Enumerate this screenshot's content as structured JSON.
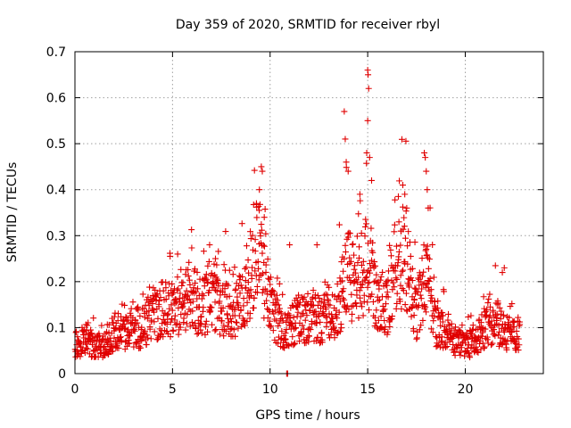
{
  "chart_data": {
    "type": "scatter",
    "title": "Day 359 of 2020, SRMTID for receiver rbyl",
    "xlabel": "GPS time / hours",
    "ylabel": "SRMTID / TECUs",
    "xlim": [
      0,
      24
    ],
    "ylim": [
      0,
      0.7
    ],
    "x_ticks": [
      0,
      5,
      10,
      15,
      20
    ],
    "y_ticks": [
      0,
      0.1,
      0.2,
      0.3,
      0.4,
      0.5,
      0.6,
      0.7
    ],
    "x_tick_labels": [
      "0",
      "5",
      "10",
      "15",
      "20"
    ],
    "y_tick_labels": [
      "0",
      "0.1",
      "0.2",
      "0.3",
      "0.4",
      "0.5",
      "0.6",
      "0.7"
    ],
    "grid": true,
    "marker": "+",
    "color": "#e00000",
    "series": [
      {
        "name": "SRMTID",
        "profile": [
          [
            0.0,
            0.05
          ],
          [
            0.5,
            0.08
          ],
          [
            1.0,
            0.06
          ],
          [
            1.5,
            0.06
          ],
          [
            2.0,
            0.09
          ],
          [
            2.5,
            0.09
          ],
          [
            3.0,
            0.1
          ],
          [
            3.5,
            0.1
          ],
          [
            4.0,
            0.13
          ],
          [
            4.5,
            0.14
          ],
          [
            5.0,
            0.14
          ],
          [
            5.5,
            0.16
          ],
          [
            6.0,
            0.17
          ],
          [
            6.5,
            0.14
          ],
          [
            7.0,
            0.17
          ],
          [
            7.5,
            0.15
          ],
          [
            8.0,
            0.14
          ],
          [
            8.5,
            0.15
          ],
          [
            9.0,
            0.22
          ],
          [
            9.5,
            0.26
          ],
          [
            10.0,
            0.15
          ],
          [
            10.5,
            0.1
          ],
          [
            11.0,
            0.1
          ],
          [
            11.5,
            0.12
          ],
          [
            12.0,
            0.12
          ],
          [
            12.5,
            0.12
          ],
          [
            13.0,
            0.12
          ],
          [
            13.5,
            0.15
          ],
          [
            14.0,
            0.22
          ],
          [
            14.5,
            0.18
          ],
          [
            15.0,
            0.25
          ],
          [
            15.5,
            0.16
          ],
          [
            16.0,
            0.15
          ],
          [
            16.5,
            0.25
          ],
          [
            17.0,
            0.25
          ],
          [
            17.5,
            0.13
          ],
          [
            18.0,
            0.22
          ],
          [
            18.5,
            0.1
          ],
          [
            19.0,
            0.09
          ],
          [
            19.5,
            0.07
          ],
          [
            20.0,
            0.06
          ],
          [
            20.5,
            0.07
          ],
          [
            21.0,
            0.1
          ],
          [
            21.5,
            0.12
          ],
          [
            22.0,
            0.09
          ],
          [
            22.5,
            0.08
          ],
          [
            22.8,
            0.09
          ]
        ],
        "outliers": [
          [
            9.55,
            0.45
          ],
          [
            9.6,
            0.44
          ],
          [
            9.45,
            0.4
          ],
          [
            9.3,
            0.37
          ],
          [
            9.7,
            0.34
          ],
          [
            13.8,
            0.57
          ],
          [
            13.85,
            0.51
          ],
          [
            13.9,
            0.46
          ],
          [
            14.0,
            0.44
          ],
          [
            14.6,
            0.39
          ],
          [
            15.0,
            0.66
          ],
          [
            15.02,
            0.65
          ],
          [
            15.05,
            0.62
          ],
          [
            15.0,
            0.55
          ],
          [
            14.95,
            0.48
          ],
          [
            15.1,
            0.47
          ],
          [
            15.2,
            0.42
          ],
          [
            16.8,
            0.41
          ],
          [
            16.9,
            0.39
          ],
          [
            17.0,
            0.36
          ],
          [
            17.9,
            0.48
          ],
          [
            17.95,
            0.47
          ],
          [
            18.0,
            0.44
          ],
          [
            18.05,
            0.4
          ],
          [
            18.1,
            0.36
          ],
          [
            16.6,
            0.33
          ],
          [
            16.7,
            0.31
          ],
          [
            10.85,
            0.0
          ],
          [
            10.9,
            0.0
          ],
          [
            6.9,
            0.28
          ],
          [
            7.2,
            0.25
          ],
          [
            22.0,
            0.23
          ],
          [
            21.9,
            0.22
          ],
          [
            12.4,
            0.28
          ],
          [
            11.0,
            0.28
          ]
        ]
      }
    ]
  }
}
